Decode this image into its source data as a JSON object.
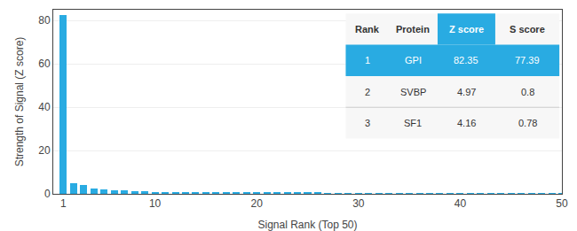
{
  "chart_data": {
    "type": "bar",
    "xlabel": "Signal Rank (Top 50)",
    "ylabel": "Strength of Signal (Z score)",
    "x": [
      1,
      2,
      3,
      4,
      5,
      6,
      7,
      8,
      9,
      10,
      11,
      12,
      13,
      14,
      15,
      16,
      17,
      18,
      19,
      20,
      21,
      22,
      23,
      24,
      25,
      26,
      27,
      28,
      29,
      30,
      31,
      32,
      33,
      34,
      35,
      36,
      37,
      38,
      39,
      40,
      41,
      42,
      43,
      44,
      45,
      46,
      47,
      48,
      49,
      50
    ],
    "values": [
      82.35,
      4.97,
      4.16,
      2.5,
      2.0,
      1.8,
      1.5,
      1.3,
      1.1,
      1.0,
      0.9,
      0.85,
      0.8,
      0.75,
      0.7,
      0.65,
      0.62,
      0.59,
      0.56,
      0.53,
      0.51,
      0.49,
      0.47,
      0.45,
      0.43,
      0.42,
      0.4,
      0.39,
      0.38,
      0.37,
      0.36,
      0.35,
      0.34,
      0.33,
      0.32,
      0.31,
      0.3,
      0.29,
      0.28,
      0.27,
      0.26,
      0.25,
      0.24,
      0.23,
      0.22,
      0.21,
      0.2,
      0.19,
      0.18,
      0.17
    ],
    "color": "#29ABE2",
    "xlim": [
      0,
      50
    ],
    "xticks": [
      1,
      10,
      20,
      30,
      40,
      50
    ],
    "ylim": [
      0,
      85
    ],
    "yticks": [
      0,
      20,
      40,
      60,
      80
    ],
    "grid": true,
    "table_headers": [
      "Rank",
      "Protein",
      "Z score",
      "S score"
    ],
    "table_rows": [
      [
        "1",
        "GPI",
        "82.35",
        "77.39"
      ],
      [
        "2",
        "SVBP",
        "4.97",
        "0.8"
      ],
      [
        "3",
        "SF1",
        "4.16",
        "0.78"
      ]
    ]
  }
}
